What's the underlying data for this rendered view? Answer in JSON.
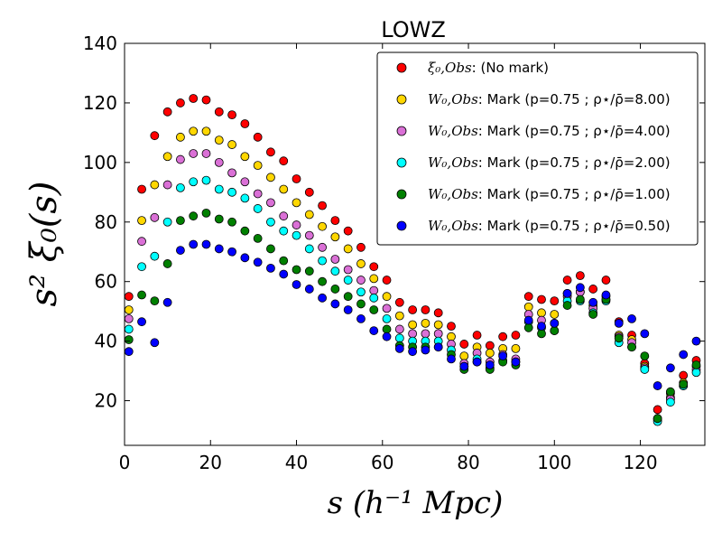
{
  "chart_data": {
    "type": "scatter",
    "title": "LOWZ",
    "xlabel": "s (h⁻¹ Mpc)",
    "ylabel": "s² ξ₀(s)",
    "xlim": [
      0,
      135
    ],
    "ylim": [
      5,
      140
    ],
    "xticks": [
      0,
      20,
      40,
      60,
      80,
      100,
      120
    ],
    "yticks": [
      20,
      40,
      60,
      80,
      100,
      120,
      140
    ],
    "legend_position": "top-right",
    "series": [
      {
        "name": "ξ₀,Obs: (No mark)",
        "legend_math": "ξ₀,Obs",
        "legend_rest": ": (No mark)",
        "color": "#ff0000",
        "x": [
          1,
          4,
          7,
          10,
          13,
          16,
          19,
          22,
          25,
          28,
          31,
          34,
          37,
          40,
          43,
          46,
          49,
          52,
          55,
          58,
          61,
          64,
          67,
          70,
          73,
          76,
          79,
          82,
          85,
          88,
          91,
          94,
          97,
          100,
          103,
          106,
          109,
          112,
          115,
          118,
          121,
          124,
          127,
          130,
          133
        ],
        "y": [
          55,
          91,
          109,
          117,
          120,
          121.5,
          121,
          117,
          116,
          113,
          108.5,
          103.5,
          100.5,
          94.5,
          90,
          85.5,
          80.5,
          77,
          71.5,
          65,
          60.5,
          53,
          50.5,
          50.5,
          49.5,
          45,
          39,
          42,
          38.5,
          41.5,
          42,
          55,
          54,
          53.5,
          60.5,
          62,
          57.5,
          60.5,
          46.5,
          42,
          32.5,
          17,
          22.5,
          28.5,
          33.5
        ]
      },
      {
        "name": "W₀,Obs: Mark (p=0.75 ; ρ⋆/ρ̄=8.00)",
        "legend_math": "W₀,Obs",
        "legend_rest": ": Mark (p=0.75 ; ρ⋆/ρ̄=8.00)",
        "color": "#ffd700",
        "x": [
          1,
          4,
          7,
          10,
          13,
          16,
          19,
          22,
          25,
          28,
          31,
          34,
          37,
          40,
          43,
          46,
          49,
          52,
          55,
          58,
          61,
          64,
          67,
          70,
          73,
          76,
          79,
          82,
          85,
          88,
          91,
          94,
          97,
          100,
          103,
          106,
          109,
          112,
          115,
          118,
          121,
          124,
          127,
          130,
          133
        ],
        "y": [
          50.5,
          80.5,
          92.5,
          102,
          108.5,
          110.5,
          110.5,
          107.5,
          106,
          102,
          99,
          95,
          91,
          86.5,
          82.5,
          78.5,
          75,
          71,
          66,
          61,
          55,
          48.5,
          45.5,
          46,
          45.5,
          41.5,
          35,
          38,
          36,
          37.5,
          37.5,
          51.5,
          49.5,
          49,
          56,
          56.5,
          52,
          54,
          42,
          40.5,
          31.5,
          14,
          21,
          26,
          31.5
        ]
      },
      {
        "name": "W₀,Obs: Mark (p=0.75 ; ρ⋆/ρ̄=4.00)",
        "legend_math": "W₀,Obs",
        "legend_rest": ": Mark (p=0.75 ; ρ⋆/ρ̄=4.00)",
        "color": "#da70d6",
        "x": [
          1,
          4,
          7,
          10,
          13,
          16,
          19,
          22,
          25,
          28,
          31,
          34,
          37,
          40,
          43,
          46,
          49,
          52,
          55,
          58,
          61,
          64,
          67,
          70,
          73,
          76,
          79,
          82,
          85,
          88,
          91,
          94,
          97,
          100,
          103,
          106,
          109,
          112,
          115,
          118,
          121,
          124,
          127,
          130,
          133
        ],
        "y": [
          47.5,
          73.5,
          81.5,
          92.5,
          101,
          103,
          103,
          100,
          96.5,
          93.5,
          89.5,
          86.5,
          82,
          79,
          75.5,
          71.5,
          67.5,
          64,
          60.5,
          57,
          51,
          44,
          42.5,
          42.5,
          42.5,
          39,
          32.5,
          36,
          33,
          35.5,
          34,
          49,
          47,
          46,
          55,
          56.5,
          51,
          55,
          41.5,
          39.5,
          31,
          13.5,
          20.5,
          25,
          30.5
        ]
      },
      {
        "name": "W₀,Obs: Mark (p=0.75 ; ρ⋆/ρ̄=2.00)",
        "legend_math": "W₀,Obs",
        "legend_rest": ": Mark (p=0.75 ; ρ⋆/ρ̄=2.00)",
        "color": "#00ffff",
        "x": [
          1,
          4,
          7,
          10,
          13,
          16,
          19,
          22,
          25,
          28,
          31,
          34,
          37,
          40,
          43,
          46,
          49,
          52,
          55,
          58,
          61,
          64,
          67,
          70,
          73,
          76,
          79,
          82,
          85,
          88,
          91,
          94,
          97,
          100,
          103,
          106,
          109,
          112,
          115,
          118,
          121,
          124,
          127,
          130,
          133
        ],
        "y": [
          44,
          65,
          68.5,
          80,
          91.5,
          93.5,
          94,
          91,
          90,
          88,
          84.5,
          80,
          77,
          75.5,
          71,
          67,
          63.5,
          60.5,
          56.5,
          54.5,
          47.5,
          41,
          40,
          40,
          40,
          37,
          31.5,
          34,
          31,
          33.5,
          33,
          46.5,
          44.5,
          43.5,
          53.5,
          53.5,
          49.5,
          53.5,
          39.5,
          38,
          30.5,
          13,
          19.5,
          25,
          29.5
        ]
      },
      {
        "name": "W₀,Obs: Mark (p=0.75 ; ρ⋆/ρ̄=1.00)",
        "legend_math": "W₀,Obs",
        "legend_rest": ": Mark (p=0.75 ; ρ⋆/ρ̄=1.00)",
        "color": "#008000",
        "x": [
          1,
          4,
          7,
          10,
          13,
          16,
          19,
          22,
          25,
          28,
          31,
          34,
          37,
          40,
          43,
          46,
          49,
          52,
          55,
          58,
          61,
          64,
          67,
          70,
          73,
          76,
          79,
          82,
          85,
          88,
          91,
          94,
          97,
          100,
          103,
          106,
          109,
          112,
          115,
          118,
          121,
          124,
          127,
          130,
          133
        ],
        "y": [
          40.5,
          55.5,
          53.5,
          66,
          80.5,
          82,
          83,
          81,
          80,
          77,
          74.5,
          71,
          67,
          64,
          63.5,
          60,
          57.5,
          55,
          52.5,
          50.5,
          44,
          38.5,
          38,
          38,
          38,
          35.5,
          30.5,
          33,
          30.5,
          33,
          32,
          44.5,
          42.5,
          43.5,
          52,
          54,
          49,
          54,
          41,
          38,
          35,
          14,
          23,
          25.5,
          32
        ]
      },
      {
        "name": "W₀,Obs: Mark (p=0.75 ; ρ⋆/ρ̄=0.50)",
        "legend_math": "W₀,Obs",
        "legend_rest": ": Mark (p=0.75 ; ρ⋆/ρ̄=0.50)",
        "color": "#0000ff",
        "x": [
          1,
          4,
          7,
          10,
          13,
          16,
          19,
          22,
          25,
          28,
          31,
          34,
          37,
          40,
          43,
          46,
          49,
          52,
          55,
          58,
          61,
          64,
          67,
          70,
          73,
          76,
          79,
          82,
          85,
          88,
          91,
          94,
          97,
          100,
          103,
          106,
          109,
          112,
          115,
          118,
          121,
          124,
          127,
          130,
          133
        ],
        "y": [
          36.5,
          46.5,
          39.5,
          53,
          70.5,
          72.5,
          72.5,
          71,
          70,
          68,
          66.5,
          64.5,
          62.5,
          59,
          57.5,
          54.5,
          52.5,
          50.5,
          47.5,
          43.5,
          41.5,
          37.5,
          36.5,
          37,
          38,
          34,
          31.5,
          33,
          32,
          35,
          33,
          47,
          45,
          46,
          56,
          58,
          53,
          55.5,
          46,
          47.5,
          42.5,
          25,
          31,
          35.5,
          40
        ]
      }
    ]
  }
}
